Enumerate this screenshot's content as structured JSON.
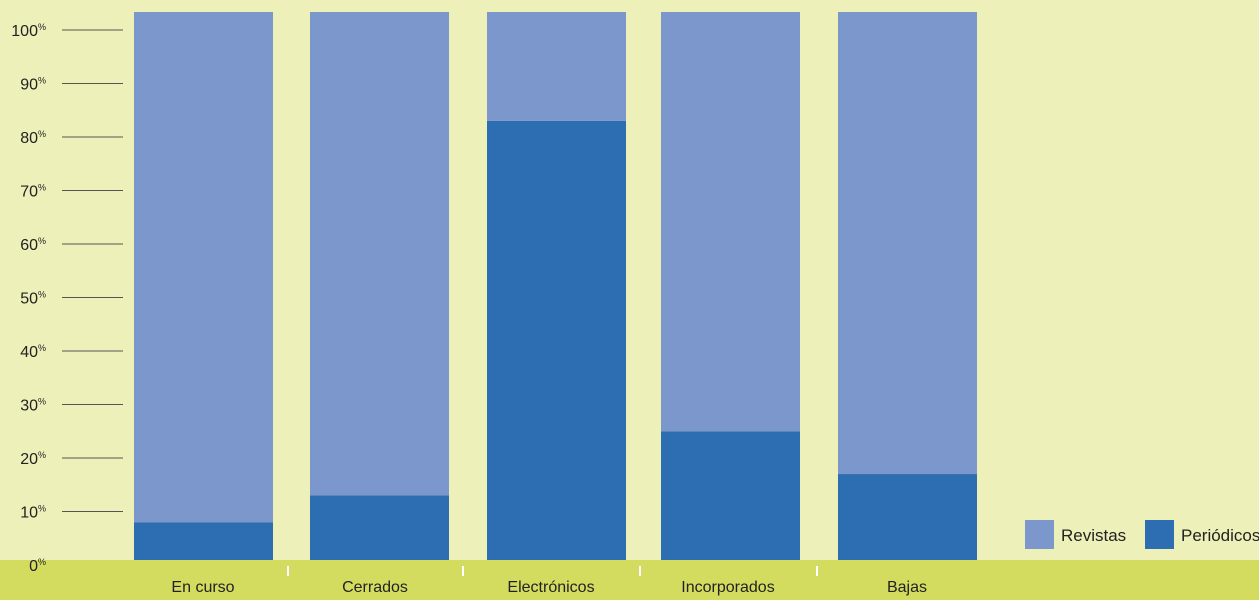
{
  "chart_data": {
    "type": "bar",
    "stacked": true,
    "categories": [
      "En curso",
      "Cerrados",
      "Electrónicos",
      "Incorporados",
      "Bajas"
    ],
    "series": [
      {
        "name": "Periódicos",
        "color": "#2d6db1",
        "values": [
          8,
          13,
          83,
          25,
          17
        ]
      },
      {
        "name": "Revistas",
        "color": "#7b97cb",
        "values": [
          92,
          87,
          17,
          75,
          83
        ]
      }
    ],
    "ylim": [
      0,
      100
    ],
    "yticks": [
      {
        "value": 0,
        "label": "0"
      },
      {
        "value": 10,
        "label": "10"
      },
      {
        "value": 20,
        "label": "20"
      },
      {
        "value": 30,
        "label": "30"
      },
      {
        "value": 40,
        "label": "40"
      },
      {
        "value": 50,
        "label": "50"
      },
      {
        "value": 60,
        "label": "60"
      },
      {
        "value": 70,
        "label": "70"
      },
      {
        "value": 80,
        "label": "80"
      },
      {
        "value": 90,
        "label": "90"
      },
      {
        "value": 100,
        "label": "100"
      }
    ],
    "ytick_suffix": "%",
    "legend_position": "bottom-right",
    "legend_order": [
      "Revistas",
      "Periódicos"
    ],
    "background_color": "#eef0b9",
    "axis_band_color": "#d4dc5f"
  }
}
